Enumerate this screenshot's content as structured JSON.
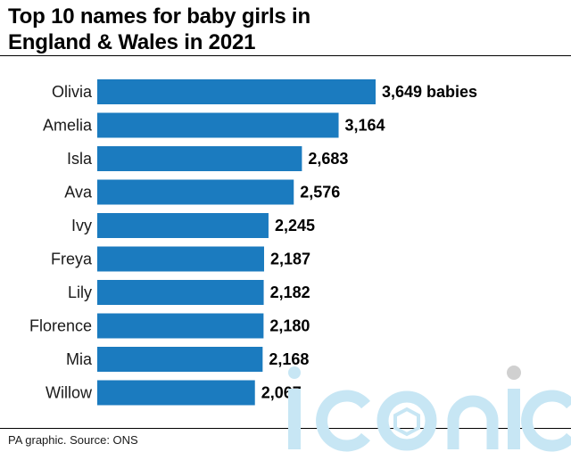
{
  "colors": {
    "bar": "#1b7bbf",
    "text": "#000000",
    "watermark": "#c7e6f4"
  },
  "chart_data": {
    "type": "bar",
    "orientation": "horizontal",
    "title": "Top 10 names for baby girls in England & Wales in 2021",
    "categories": [
      "Olivia",
      "Amelia",
      "Isla",
      "Ava",
      "Ivy",
      "Freya",
      "Lily",
      "Florence",
      "Mia",
      "Willow"
    ],
    "values": [
      3649,
      3164,
      2683,
      2576,
      2245,
      2187,
      2182,
      2180,
      2168,
      2067
    ],
    "value_labels": [
      "3,649 babies",
      "3,164",
      "2,683",
      "2,576",
      "2,245",
      "2,187",
      "2,182",
      "2,180",
      "2,168",
      "2,067"
    ],
    "xlim": [
      0,
      3649
    ],
    "grid": false,
    "legend": "none"
  },
  "footer": {
    "source": "PA graphic. Source: ONS"
  },
  "watermark": {
    "text": "iconic",
    "icon": "iconic-watermark-logo"
  }
}
